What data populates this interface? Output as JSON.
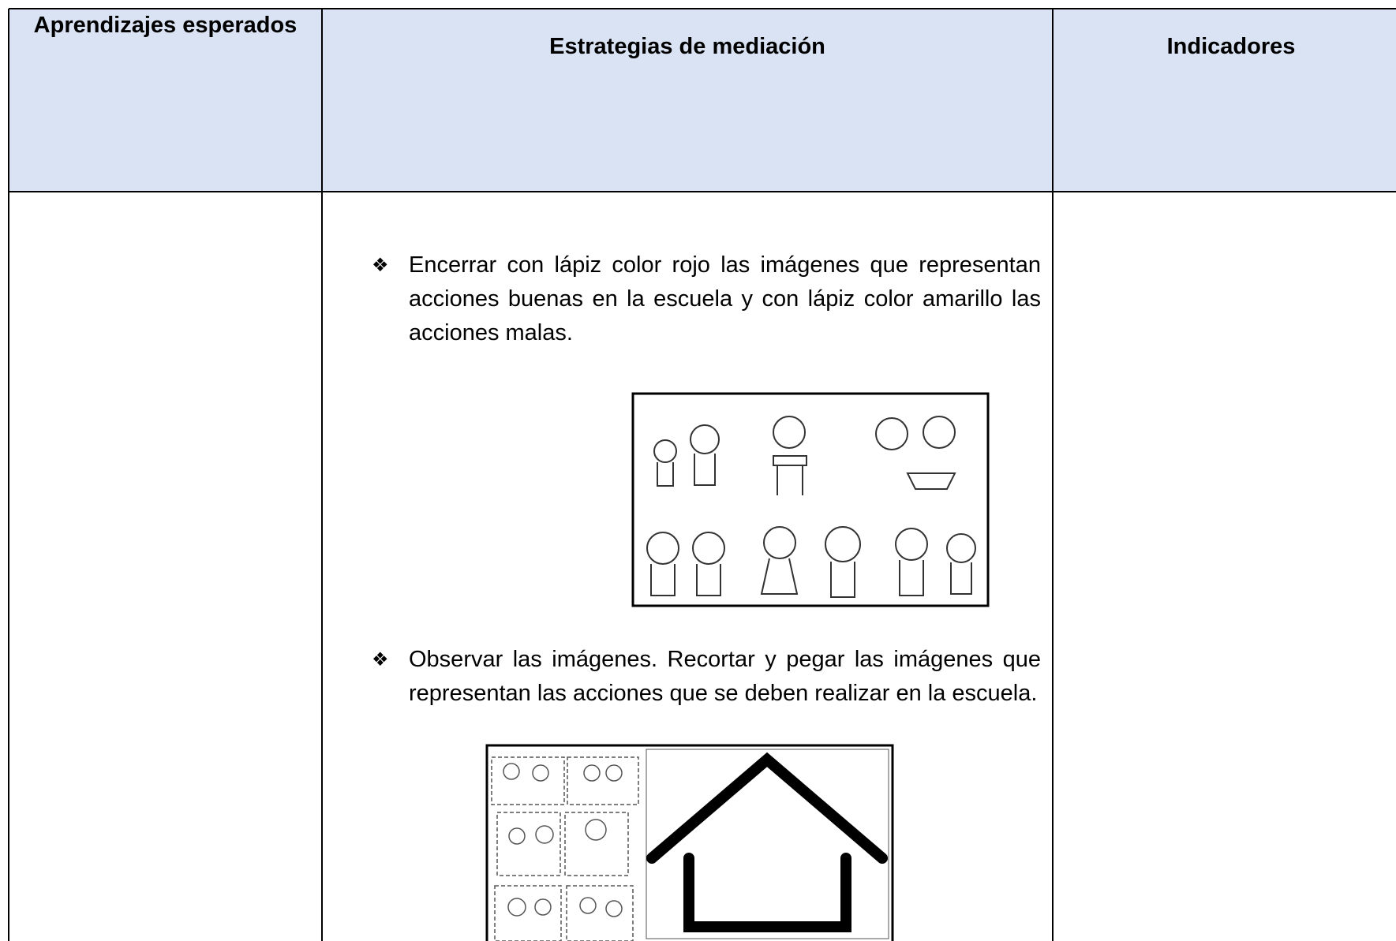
{
  "header": [
    "Aprendizajes esperados",
    "Estrategias de mediación",
    "Indicadores"
  ],
  "strategies": [
    "Encerrar con lápiz color rojo las imágenes que representan acciones buenas en la escuela y con lápiz color amarillo las acciones malas.",
    "Observar las imágenes. Recortar y pegar las imágenes que representan las acciones que se deben realizar en la escuela."
  ]
}
